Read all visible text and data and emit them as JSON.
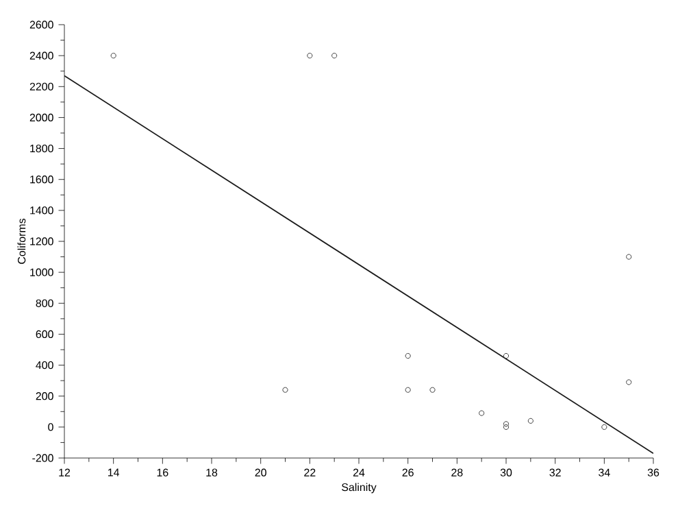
{
  "chart_data": {
    "type": "scatter",
    "xlabel": "Salinity",
    "ylabel": "Coliforms",
    "xlim": [
      12,
      36
    ],
    "xticks": [
      12,
      14,
      16,
      18,
      20,
      22,
      24,
      26,
      28,
      30,
      32,
      34,
      36
    ],
    "ylim": [
      -200,
      2600
    ],
    "yticks": [
      -200,
      0,
      200,
      400,
      600,
      800,
      1000,
      1200,
      1400,
      1600,
      1800,
      2000,
      2200,
      2400,
      2600
    ],
    "grid": false,
    "marker": "circle",
    "series": [
      {
        "color": "#404040",
        "x": [
          14,
          22,
          23,
          21,
          26,
          26,
          27,
          29,
          30,
          30,
          30,
          31,
          34,
          35,
          35
        ],
        "values": [
          2400,
          2400,
          2400,
          240,
          460,
          240,
          240,
          90,
          460,
          20,
          0,
          40,
          0,
          1100,
          290
        ]
      },
      {
        "type": "line",
        "color": "#1a1a1a",
        "marker": "none",
        "line_style": "solid",
        "x": [
          12,
          36
        ],
        "values": [
          2270,
          -170
        ]
      }
    ]
  }
}
